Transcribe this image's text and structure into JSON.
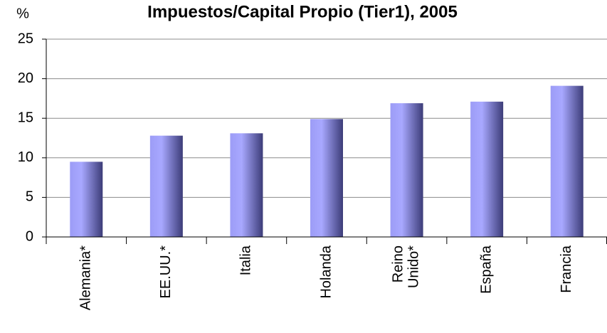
{
  "chart_data": {
    "type": "bar",
    "title": "Impuestos/Capital Propio (Tier1), 2005",
    "y_label": "%",
    "categories": [
      "Alemania*",
      "EE.UU.*",
      "Italia",
      "Holanda",
      "Reino Unido*",
      "España",
      "Francia"
    ],
    "values": [
      9.5,
      12.8,
      13.1,
      14.9,
      16.9,
      17.1,
      19.1
    ],
    "color": "#9999ff",
    "ylim": [
      0,
      25
    ],
    "yticks": [
      0,
      5,
      10,
      15,
      20,
      25
    ],
    "grid": true
  }
}
